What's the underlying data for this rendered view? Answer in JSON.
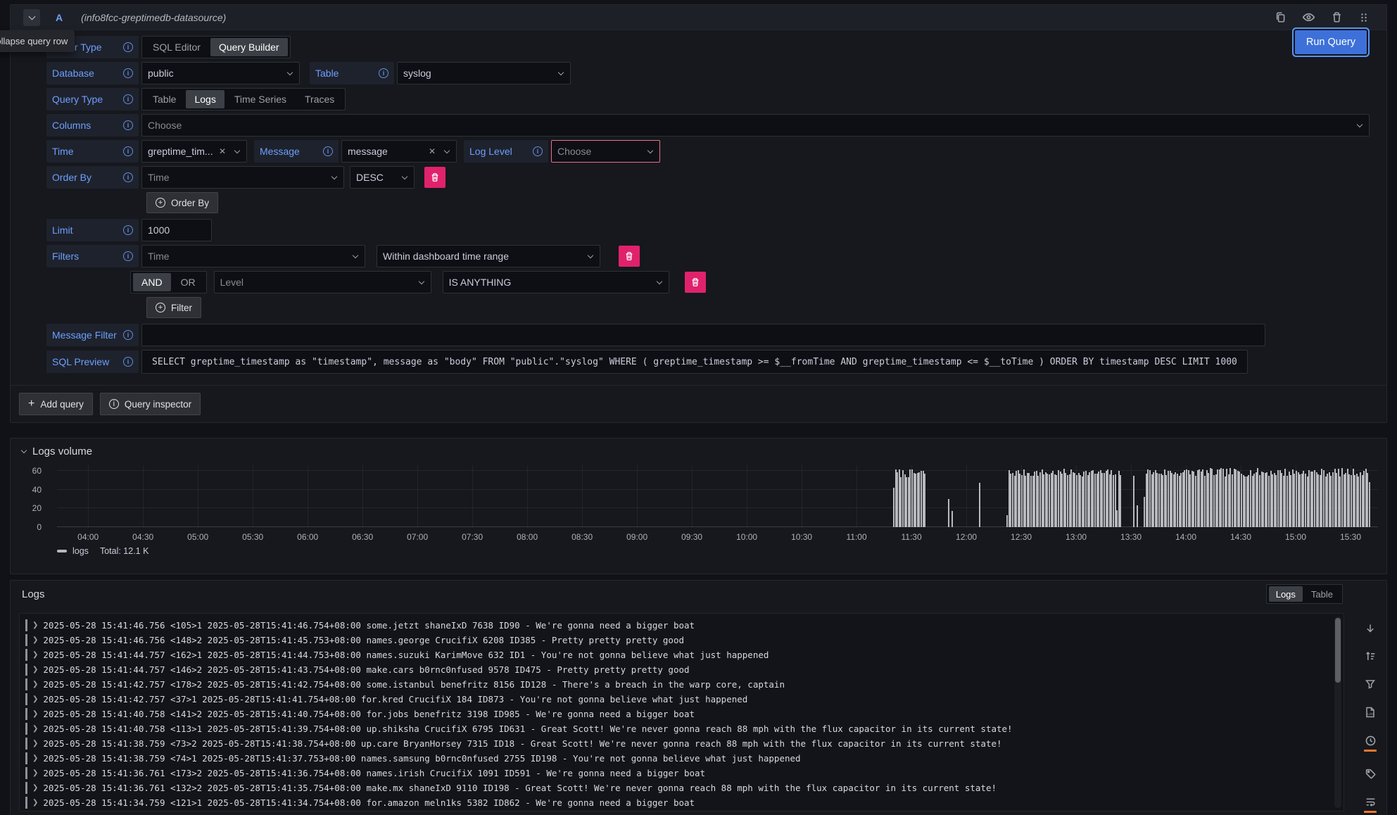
{
  "query_row": {
    "collapse_tooltip": "Collapse query row",
    "ref_id": "A",
    "datasource_name": "(info8fcc-greptimedb-datasource)",
    "run_query_label": "Run Query"
  },
  "builder": {
    "editor_type": {
      "label": "Editor Type",
      "options": [
        "SQL Editor",
        "Query Builder"
      ],
      "selected": "Query Builder"
    },
    "database": {
      "label": "Database",
      "value": "public"
    },
    "table": {
      "label": "Table",
      "value": "syslog"
    },
    "query_type": {
      "label": "Query Type",
      "options": [
        "Table",
        "Logs",
        "Time Series",
        "Traces"
      ],
      "selected": "Logs"
    },
    "columns": {
      "label": "Columns",
      "placeholder": "Choose"
    },
    "time": {
      "label": "Time",
      "value": "greptime_tim..."
    },
    "message": {
      "label": "Message",
      "value": "message"
    },
    "log_level": {
      "label": "Log Level",
      "placeholder": "Choose"
    },
    "order_by": {
      "label": "Order By",
      "field_placeholder": "Time",
      "direction": "DESC",
      "add_button": "Order By"
    },
    "limit": {
      "label": "Limit",
      "value": "1000"
    },
    "filters": {
      "label": "Filters",
      "row1": {
        "field_placeholder": "Time",
        "operator": "Within dashboard time range"
      },
      "row2": {
        "conjunctions": [
          "AND",
          "OR"
        ],
        "selected": "AND",
        "field_placeholder": "Level",
        "operator": "IS ANYTHING"
      },
      "add_button": "Filter"
    },
    "message_filter": {
      "label": "Message Filter",
      "value": ""
    },
    "sql_preview": {
      "label": "SQL Preview",
      "sql": "SELECT greptime_timestamp as \"timestamp\", message as \"body\" FROM \"public\".\"syslog\" WHERE ( greptime_timestamp >= $__fromTime AND greptime_timestamp <= $__toTime ) ORDER BY timestamp DESC LIMIT 1000"
    }
  },
  "footer": {
    "add_query": "Add query",
    "query_inspector": "Query inspector"
  },
  "logs_volume": {
    "title": "Logs volume",
    "chart_data": {
      "type": "bar",
      "title": "Logs volume",
      "xlabel": "",
      "ylabel": "",
      "ylim": [
        0,
        66
      ],
      "y_ticks": [
        0,
        20,
        40,
        60
      ],
      "x_ticks": [
        "04:00",
        "04:30",
        "05:00",
        "05:30",
        "06:00",
        "06:30",
        "07:00",
        "07:30",
        "08:00",
        "08:30",
        "09:00",
        "09:30",
        "10:00",
        "10:30",
        "11:00",
        "11:30",
        "12:00",
        "12:30",
        "13:00",
        "13:30",
        "14:00",
        "14:30",
        "15:00",
        "15:30"
      ],
      "x_tick_start_min": 240,
      "x_tick_step_min": 30,
      "x_range_min": [
        223,
        945
      ],
      "bar_color": "#b7b9be",
      "dense_segments": [
        {
          "from": 680,
          "to": 697,
          "base": 53,
          "var": 9,
          "first": 42
        },
        {
          "from": 742,
          "to": 804,
          "base": 54,
          "var": 8,
          "first": 13,
          "dips": {
            "802": 18
          }
        },
        {
          "from": 817,
          "to": 940,
          "base": 54,
          "var": 9,
          "first": 32,
          "last": 48
        }
      ],
      "single_bars": [
        {
          "at": 710,
          "h": 30
        },
        {
          "at": 712,
          "h": 17
        },
        {
          "at": 727,
          "h": 47
        },
        {
          "at": 811,
          "h": 55
        },
        {
          "at": 813,
          "h": 23
        }
      ],
      "legend": {
        "series": "logs",
        "total_label": "Total: 12.1 K",
        "position": "bottom-left"
      },
      "grid": true
    }
  },
  "logs_panel": {
    "title": "Logs",
    "view_options": [
      "Logs",
      "Table"
    ],
    "selected_view": "Logs",
    "rows": [
      "2025-05-28 15:41:46.756 <105>1 2025-05-28T15:41:46.754+08:00 some.jetzt shaneIxD 7638 ID90 - We're gonna need a bigger boat",
      "2025-05-28 15:41:46.756 <148>2 2025-05-28T15:41:45.753+08:00 names.george CrucifiX 6208 ID385 - Pretty pretty pretty good",
      "2025-05-28 15:41:44.757 <162>1 2025-05-28T15:41:44.753+08:00 names.suzuki KarimMove 632 ID1 - You're not gonna believe what just happened",
      "2025-05-28 15:41:44.757 <146>2 2025-05-28T15:41:43.754+08:00 make.cars b0rnc0nfused 9578 ID475 - Pretty pretty pretty good",
      "2025-05-28 15:41:42.757 <178>2 2025-05-28T15:41:42.754+08:00 some.istanbul benefritz 8156 ID128 - There's a breach in the warp core, captain",
      "2025-05-28 15:41:42.757 <37>1 2025-05-28T15:41:41.754+08:00 for.kred CrucifiX 184 ID873 - You're not gonna believe what just happened",
      "2025-05-28 15:41:40.758 <141>2 2025-05-28T15:41:40.754+08:00 for.jobs benefritz 3198 ID985 - We're gonna need a bigger boat",
      "2025-05-28 15:41:40.758 <113>1 2025-05-28T15:41:39.754+08:00 up.shiksha CrucifiX 6795 ID631 - Great Scott! We're never gonna reach 88 mph with the flux capacitor in its current state!",
      "2025-05-28 15:41:38.759 <73>2 2025-05-28T15:41:38.754+08:00 up.care BryanHorsey 7315 ID18 - Great Scott! We're never gonna reach 88 mph with the flux capacitor in its current state!",
      "2025-05-28 15:41:38.759 <74>1 2025-05-28T15:41:37.753+08:00 names.samsung b0rnc0nfused 2755 ID198 - You're not gonna believe what just happened",
      "2025-05-28 15:41:36.761 <173>2 2025-05-28T15:41:36.754+08:00 names.irish CrucifiX 1091 ID591 - We're gonna need a bigger boat",
      "2025-05-28 15:41:36.761 <132>2 2025-05-28T15:41:35.754+08:00 make.mx shaneIxD 9110 ID198 - Great Scott! We're never gonna reach 88 mph with the flux capacitor in its current state!",
      "2025-05-28 15:41:34.759 <121>1 2025-05-28T15:41:34.754+08:00 for.amazon meln1ks 5382 ID862 - We're gonna need a bigger boat"
    ]
  }
}
